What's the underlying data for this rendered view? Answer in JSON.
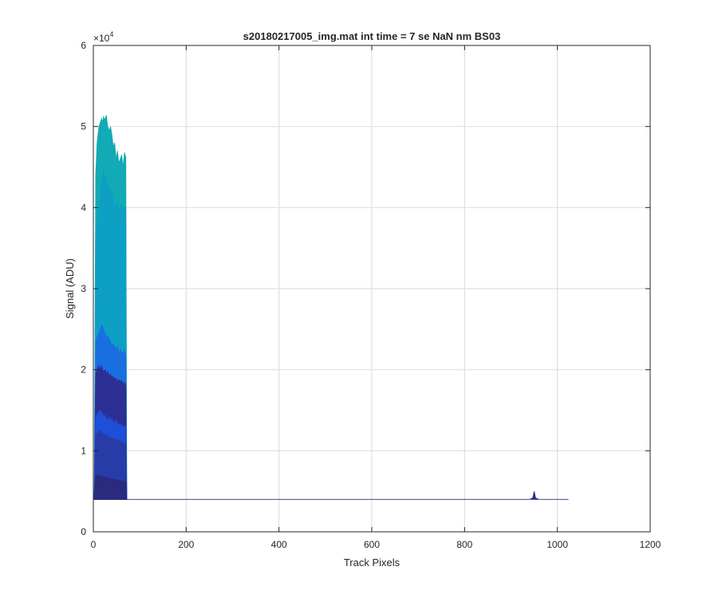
{
  "chart_data": {
    "type": "area",
    "title": "s20180217005_img.mat int time = 7 se  NaN nm BS03",
    "xlabel": "Track Pixels",
    "ylabel": "Signal (ADU)",
    "exponent_label": "×10",
    "exponent_power": "4",
    "xlim": [
      0,
      1200
    ],
    "ylim": [
      0,
      6
    ],
    "y_scale_factor": 10000,
    "x_ticks": [
      0,
      200,
      400,
      600,
      800,
      1000,
      1200
    ],
    "y_ticks": [
      0,
      1,
      2,
      3,
      4,
      5,
      6
    ],
    "grid": true,
    "baseline": 0.4,
    "series": [
      {
        "color": "#12aab4",
        "x": [
          2,
          5,
          8,
          12,
          15,
          18,
          20,
          22,
          25,
          28,
          31,
          34,
          37,
          40,
          43,
          46,
          49,
          52,
          55,
          58,
          61,
          64,
          67,
          70,
          72
        ],
        "y": [
          0.4,
          4.4,
          4.8,
          5.0,
          5.05,
          5.1,
          5.05,
          5.12,
          5.08,
          5.14,
          5.0,
          4.95,
          5.0,
          4.9,
          4.75,
          4.8,
          4.6,
          4.7,
          4.55,
          4.6,
          4.65,
          4.5,
          4.68,
          4.62,
          0.4
        ]
      },
      {
        "color": "#0e9fc4",
        "x": [
          2,
          5,
          8,
          12,
          15,
          18,
          20,
          22,
          25,
          28,
          31,
          34,
          37,
          40,
          43,
          46,
          49,
          52,
          55,
          58,
          61,
          64,
          67,
          70,
          72
        ],
        "y": [
          0.4,
          3.6,
          3.8,
          4.0,
          4.15,
          4.3,
          4.4,
          4.45,
          4.4,
          4.35,
          4.3,
          4.25,
          4.2,
          4.2,
          4.1,
          4.05,
          4.0,
          4.1,
          3.95,
          4.0,
          4.05,
          3.9,
          4.0,
          4.0,
          0.4
        ]
      },
      {
        "color": "#1a6fe0",
        "x": [
          2,
          5,
          8,
          12,
          15,
          18,
          20,
          22,
          25,
          28,
          31,
          34,
          37,
          40,
          43,
          46,
          49,
          52,
          55,
          58,
          61,
          64,
          67,
          70,
          72
        ],
        "y": [
          0.4,
          2.35,
          2.4,
          2.45,
          2.5,
          2.55,
          2.52,
          2.5,
          2.45,
          2.4,
          2.42,
          2.38,
          2.35,
          2.3,
          2.32,
          2.28,
          2.25,
          2.3,
          2.2,
          2.25,
          2.22,
          2.2,
          2.25,
          2.15,
          0.4
        ]
      },
      {
        "color": "#2c3094",
        "x": [
          2,
          5,
          8,
          12,
          15,
          18,
          20,
          22,
          25,
          28,
          31,
          34,
          37,
          40,
          43,
          46,
          49,
          52,
          55,
          58,
          61,
          64,
          67,
          70,
          72
        ],
        "y": [
          0.4,
          1.95,
          2.0,
          2.05,
          2.0,
          2.05,
          2.0,
          1.98,
          2.0,
          1.95,
          1.98,
          1.92,
          1.95,
          1.9,
          1.92,
          1.88,
          1.9,
          1.85,
          1.88,
          1.85,
          1.87,
          1.82,
          1.85,
          1.8,
          0.4
        ]
      },
      {
        "color": "#1e4fd8",
        "x": [
          2,
          5,
          8,
          12,
          15,
          18,
          20,
          22,
          25,
          28,
          31,
          34,
          37,
          40,
          43,
          46,
          49,
          52,
          55,
          58,
          61,
          64,
          67,
          70,
          72
        ],
        "y": [
          0.4,
          1.4,
          1.45,
          1.48,
          1.5,
          1.47,
          1.45,
          1.42,
          1.44,
          1.4,
          1.38,
          1.42,
          1.36,
          1.4,
          1.35,
          1.34,
          1.38,
          1.32,
          1.34,
          1.3,
          1.33,
          1.28,
          1.3,
          1.3,
          0.4
        ]
      },
      {
        "color": "#283ca8",
        "x": [
          2,
          5,
          8,
          12,
          15,
          18,
          20,
          22,
          25,
          28,
          31,
          34,
          37,
          40,
          43,
          46,
          49,
          52,
          55,
          58,
          61,
          64,
          67,
          70,
          72
        ],
        "y": [
          0.4,
          1.2,
          1.22,
          1.25,
          1.24,
          1.22,
          1.2,
          1.22,
          1.18,
          1.2,
          1.17,
          1.18,
          1.15,
          1.16,
          1.14,
          1.15,
          1.12,
          1.14,
          1.12,
          1.1,
          1.12,
          1.1,
          1.1,
          1.08,
          0.4
        ]
      },
      {
        "color": "#2a2a7e",
        "x": [
          2,
          5,
          8,
          12,
          15,
          18,
          20,
          22,
          25,
          28,
          31,
          34,
          37,
          40,
          43,
          46,
          49,
          52,
          55,
          58,
          61,
          64,
          67,
          70,
          72
        ],
        "y": [
          0.4,
          0.68,
          0.7,
          0.7,
          0.69,
          0.68,
          0.68,
          0.67,
          0.68,
          0.66,
          0.67,
          0.65,
          0.66,
          0.65,
          0.65,
          0.64,
          0.65,
          0.63,
          0.64,
          0.63,
          0.63,
          0.62,
          0.63,
          0.62,
          0.4
        ]
      },
      {
        "color": "#2a2a8a",
        "x": [
          72,
          300,
          600,
          940,
          947,
          950,
          953,
          960,
          1024
        ],
        "y": [
          0.4,
          0.4,
          0.4,
          0.4,
          0.42,
          0.5,
          0.42,
          0.4,
          0.4
        ]
      }
    ]
  }
}
